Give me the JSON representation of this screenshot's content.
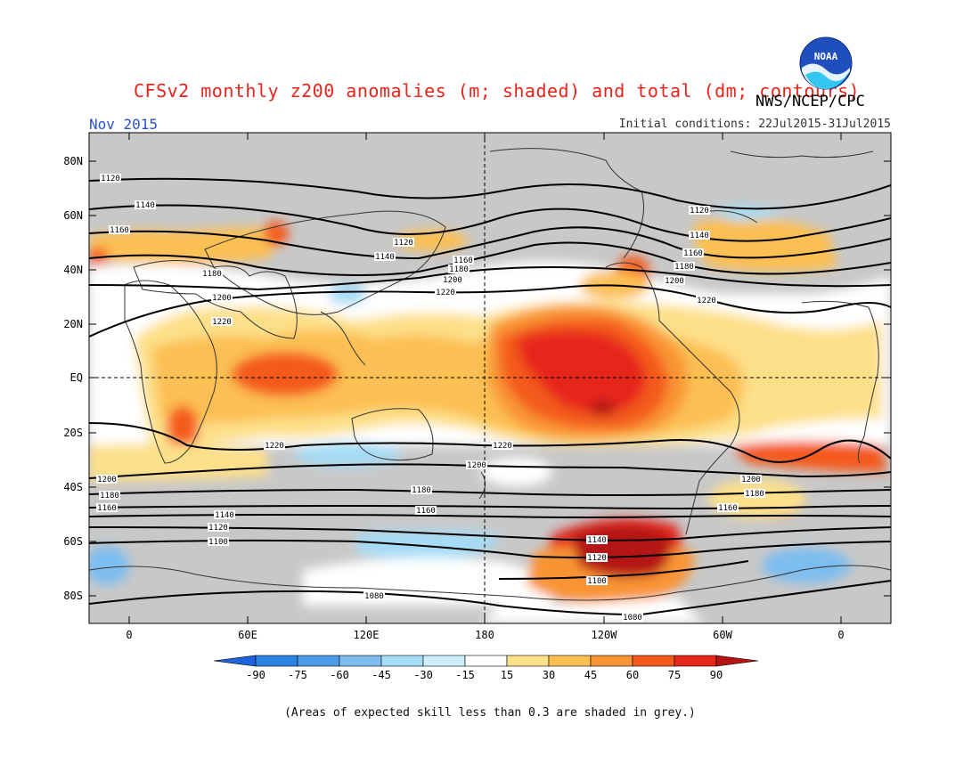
{
  "header": {
    "title": "CFSv2 monthly z200 anomalies (m; shaded) and total (dm; contours)",
    "agency": "NWS/NCEP/CPC",
    "month": "Nov 2015",
    "initial_conditions": "Initial conditions: 22Jul2015-31Jul2015",
    "logo_text": "NOAA"
  },
  "axes": {
    "lat_labels": [
      "80N",
      "60N",
      "40N",
      "20N",
      "EQ",
      "20S",
      "40S",
      "60S",
      "80S"
    ],
    "lon_labels": [
      "0",
      "60E",
      "120E",
      "180",
      "120W",
      "60W",
      "0"
    ]
  },
  "colorbar": {
    "ticks": [
      "-90",
      "-75",
      "-60",
      "-45",
      "-30",
      "-15",
      "15",
      "30",
      "45",
      "60",
      "75",
      "90"
    ],
    "colors": [
      "#1e64dc",
      "#2d82e6",
      "#4b9be6",
      "#7dbdf0",
      "#a6dcf5",
      "#cdeffa",
      "#ffffff",
      "#fde08a",
      "#fcbf52",
      "#f99434",
      "#f45a1c",
      "#e6281a",
      "#b41414"
    ]
  },
  "contours": {
    "labels": [
      "1120",
      "1140",
      "1160",
      "1180",
      "1200",
      "1220",
      "1220",
      "1200",
      "1180",
      "1160",
      "1140",
      "1120",
      "1100",
      "1080",
      "1080",
      "1100",
      "1120",
      "1140",
      "1120",
      "1140",
      "1160",
      "1180",
      "1200",
      "1220",
      "1220",
      "1200",
      "1180",
      "1160",
      "1120",
      "1140",
      "1160",
      "1180",
      "1200",
      "1220",
      "1200",
      "1180",
      "1160"
    ]
  },
  "footer": {
    "note": "(Areas of expected skill less than 0.3 are shaded in grey.)"
  }
}
